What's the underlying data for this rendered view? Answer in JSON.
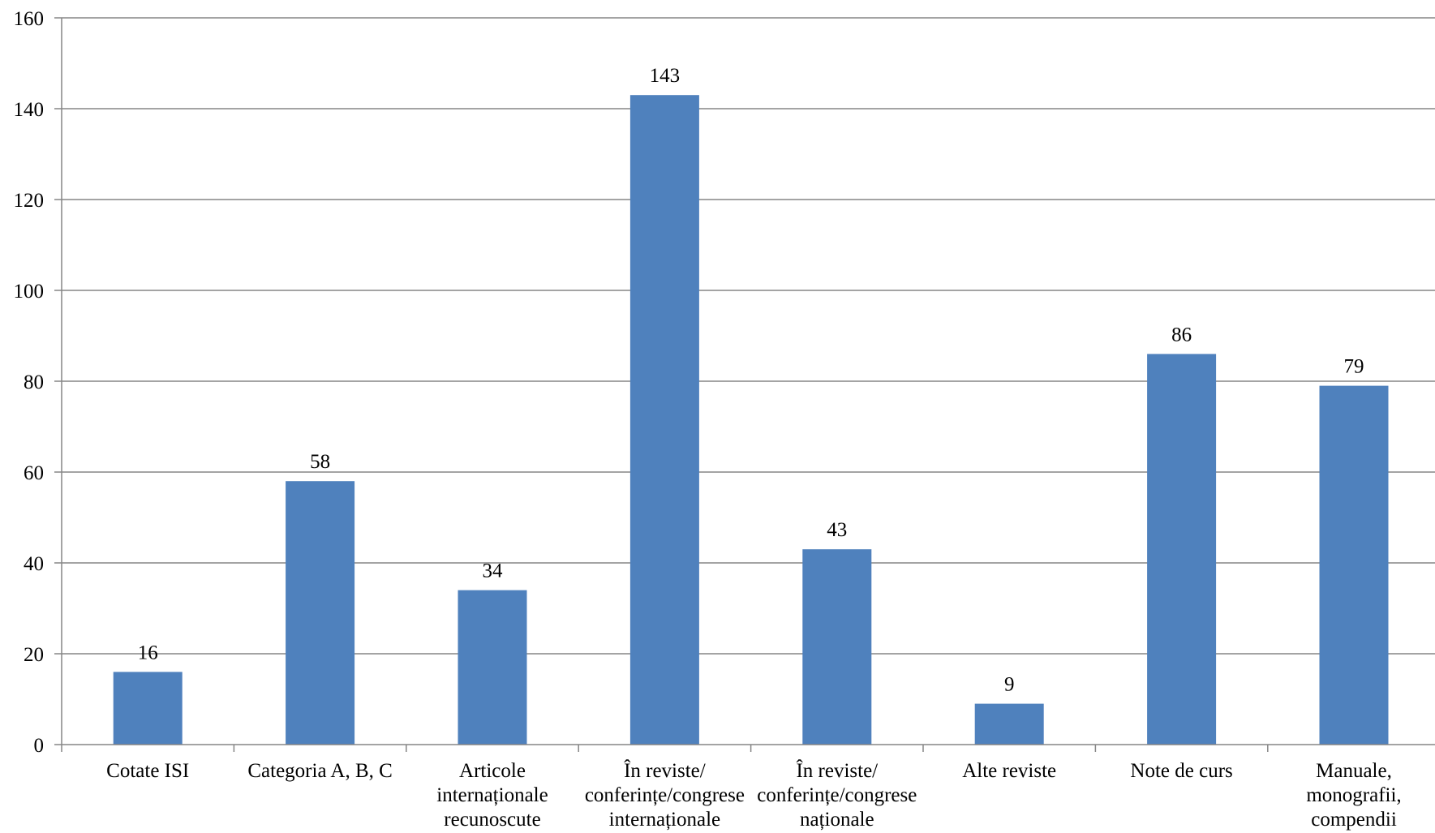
{
  "chart_data": {
    "type": "bar",
    "categories": [
      [
        "Cotate ISI"
      ],
      [
        "Categoria A, B, C"
      ],
      [
        "Articole",
        "internaționale",
        "recunoscute"
      ],
      [
        "În reviste/",
        "conferințe/congrese",
        "internaționale"
      ],
      [
        "În reviste/",
        "conferințe/congrese",
        "naționale"
      ],
      [
        "Alte reviste"
      ],
      [
        "Note de curs"
      ],
      [
        "Manuale,",
        "monografii,",
        "compendii"
      ]
    ],
    "values": [
      16,
      58,
      34,
      143,
      43,
      9,
      86,
      79
    ],
    "ylim": [
      0,
      160
    ],
    "yticks": [
      0,
      20,
      40,
      60,
      80,
      100,
      120,
      140,
      160
    ],
    "grid": true,
    "legend": "none",
    "bar_color": "#4F81BD",
    "gridline_color": "#868686",
    "axis_color": "#868686"
  }
}
